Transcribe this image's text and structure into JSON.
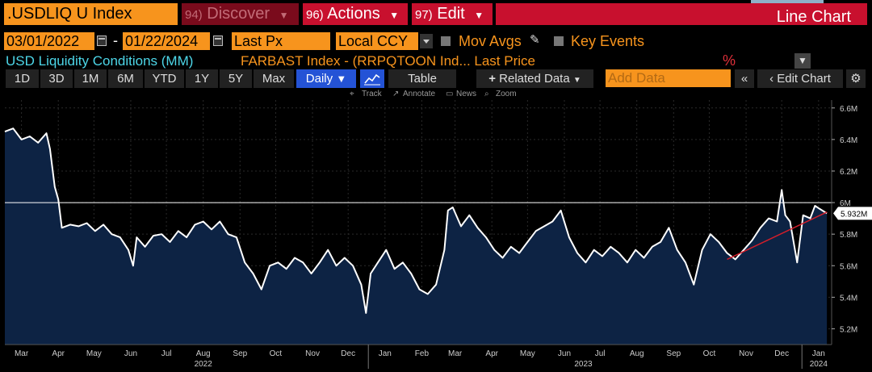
{
  "header": {
    "ticker": ".USDLIQ U Index",
    "menus": [
      {
        "num": "94)",
        "label": "Discover"
      },
      {
        "num": "96)",
        "label": "Actions"
      },
      {
        "num": "97)",
        "label": "Edit"
      }
    ],
    "chart_type_label": "Line Chart"
  },
  "options": {
    "start_date": "03/01/2022",
    "end_date": "01/22/2024",
    "field": "Last Px",
    "currency": "Local CCY",
    "mov_avgs": "Mov Avgs",
    "key_events": "Key Events"
  },
  "legend": {
    "series1": "USD Liquidity Conditions (MM)",
    "series2": "FARBAST Index - (RRPQTOON Ind...  Last Price",
    "pct_icon": "%"
  },
  "toolbar": {
    "periods": [
      "1D",
      "3D",
      "1M",
      "6M",
      "YTD",
      "1Y",
      "5Y",
      "Max"
    ],
    "frequency": "Daily",
    "table": "Table",
    "related": "Related Data",
    "add_data_placeholder": "Add Data",
    "edit_chart": "Edit Chart"
  },
  "hints": {
    "track": "Track",
    "annotate": "Annotate",
    "news": "News",
    "zoom": "Zoom"
  },
  "colors": {
    "orange": "#f7941d",
    "red": "#c8102e",
    "line": "#ffffff",
    "area": "#0d2344",
    "trendline": "#d21e2a",
    "blue_active": "#2453d6",
    "cyan": "#4dd6e8"
  },
  "chart_data": {
    "type": "area",
    "series": [
      {
        "name": "USD Liquidity Conditions (MM)",
        "points": [
          [
            "2022-03-01",
            6.45
          ],
          [
            "2022-03-08",
            6.47
          ],
          [
            "2022-03-15",
            6.4
          ],
          [
            "2022-03-22",
            6.42
          ],
          [
            "2022-03-29",
            6.38
          ],
          [
            "2022-04-05",
            6.44
          ],
          [
            "2022-04-08",
            6.34
          ],
          [
            "2022-04-12",
            6.1
          ],
          [
            "2022-04-15",
            6.02
          ],
          [
            "2022-04-18",
            5.84
          ],
          [
            "2022-04-25",
            5.86
          ],
          [
            "2022-05-02",
            5.85
          ],
          [
            "2022-05-09",
            5.87
          ],
          [
            "2022-05-16",
            5.82
          ],
          [
            "2022-05-23",
            5.86
          ],
          [
            "2022-05-30",
            5.8
          ],
          [
            "2022-06-06",
            5.78
          ],
          [
            "2022-06-13",
            5.7
          ],
          [
            "2022-06-17",
            5.6
          ],
          [
            "2022-06-20",
            5.78
          ],
          [
            "2022-06-27",
            5.72
          ],
          [
            "2022-07-04",
            5.79
          ],
          [
            "2022-07-11",
            5.8
          ],
          [
            "2022-07-18",
            5.75
          ],
          [
            "2022-07-25",
            5.82
          ],
          [
            "2022-08-01",
            5.78
          ],
          [
            "2022-08-08",
            5.86
          ],
          [
            "2022-08-15",
            5.88
          ],
          [
            "2022-08-22",
            5.83
          ],
          [
            "2022-08-29",
            5.88
          ],
          [
            "2022-09-05",
            5.8
          ],
          [
            "2022-09-12",
            5.78
          ],
          [
            "2022-09-19",
            5.62
          ],
          [
            "2022-09-26",
            5.55
          ],
          [
            "2022-10-03",
            5.45
          ],
          [
            "2022-10-10",
            5.6
          ],
          [
            "2022-10-17",
            5.62
          ],
          [
            "2022-10-24",
            5.58
          ],
          [
            "2022-10-31",
            5.65
          ],
          [
            "2022-11-07",
            5.62
          ],
          [
            "2022-11-14",
            5.55
          ],
          [
            "2022-11-21",
            5.62
          ],
          [
            "2022-11-28",
            5.7
          ],
          [
            "2022-12-05",
            5.6
          ],
          [
            "2022-12-12",
            5.65
          ],
          [
            "2022-12-19",
            5.6
          ],
          [
            "2022-12-26",
            5.48
          ],
          [
            "2022-12-30",
            5.3
          ],
          [
            "2023-01-03",
            5.55
          ],
          [
            "2023-01-09",
            5.62
          ],
          [
            "2023-01-16",
            5.7
          ],
          [
            "2023-01-23",
            5.58
          ],
          [
            "2023-01-30",
            5.62
          ],
          [
            "2023-02-06",
            5.55
          ],
          [
            "2023-02-13",
            5.45
          ],
          [
            "2023-02-20",
            5.42
          ],
          [
            "2023-02-27",
            5.48
          ],
          [
            "2023-03-06",
            5.7
          ],
          [
            "2023-03-09",
            5.95
          ],
          [
            "2023-03-13",
            5.97
          ],
          [
            "2023-03-20",
            5.85
          ],
          [
            "2023-03-27",
            5.92
          ],
          [
            "2023-04-03",
            5.84
          ],
          [
            "2023-04-10",
            5.78
          ],
          [
            "2023-04-17",
            5.7
          ],
          [
            "2023-04-24",
            5.65
          ],
          [
            "2023-05-01",
            5.72
          ],
          [
            "2023-05-08",
            5.68
          ],
          [
            "2023-05-15",
            5.75
          ],
          [
            "2023-05-22",
            5.82
          ],
          [
            "2023-05-29",
            5.85
          ],
          [
            "2023-06-05",
            5.88
          ],
          [
            "2023-06-12",
            5.95
          ],
          [
            "2023-06-19",
            5.78
          ],
          [
            "2023-06-26",
            5.68
          ],
          [
            "2023-07-03",
            5.62
          ],
          [
            "2023-07-10",
            5.7
          ],
          [
            "2023-07-17",
            5.66
          ],
          [
            "2023-07-24",
            5.72
          ],
          [
            "2023-07-31",
            5.68
          ],
          [
            "2023-08-07",
            5.62
          ],
          [
            "2023-08-14",
            5.7
          ],
          [
            "2023-08-21",
            5.65
          ],
          [
            "2023-08-28",
            5.72
          ],
          [
            "2023-09-04",
            5.75
          ],
          [
            "2023-09-11",
            5.84
          ],
          [
            "2023-09-18",
            5.7
          ],
          [
            "2023-09-25",
            5.62
          ],
          [
            "2023-10-02",
            5.48
          ],
          [
            "2023-10-09",
            5.7
          ],
          [
            "2023-10-16",
            5.8
          ],
          [
            "2023-10-23",
            5.75
          ],
          [
            "2023-10-30",
            5.68
          ],
          [
            "2023-11-06",
            5.64
          ],
          [
            "2023-11-13",
            5.7
          ],
          [
            "2023-11-20",
            5.76
          ],
          [
            "2023-11-27",
            5.84
          ],
          [
            "2023-12-04",
            5.9
          ],
          [
            "2023-12-11",
            5.88
          ],
          [
            "2023-12-15",
            6.08
          ],
          [
            "2023-12-18",
            5.92
          ],
          [
            "2023-12-22",
            5.88
          ],
          [
            "2023-12-28",
            5.62
          ],
          [
            "2024-01-02",
            5.92
          ],
          [
            "2024-01-08",
            5.9
          ],
          [
            "2024-01-12",
            5.98
          ],
          [
            "2024-01-16",
            5.96
          ],
          [
            "2024-01-22",
            5.932
          ]
        ]
      }
    ],
    "ylim": [
      5.1,
      6.65
    ],
    "yticks": [
      5.2,
      5.4,
      5.6,
      5.8,
      6.0,
      6.2,
      6.4,
      6.6
    ],
    "ytick_labels": [
      "5.2M",
      "5.4M",
      "5.6M",
      "5.8M",
      "6M",
      "6.2M",
      "6.4M",
      "6.6M"
    ],
    "xlim": [
      "2022-03-01",
      "2024-01-26"
    ],
    "x_months": [
      {
        "date": "2022-03-15",
        "label": "Mar"
      },
      {
        "date": "2022-04-15",
        "label": "Apr"
      },
      {
        "date": "2022-05-15",
        "label": "May"
      },
      {
        "date": "2022-06-15",
        "label": "Jun"
      },
      {
        "date": "2022-07-15",
        "label": "Jul"
      },
      {
        "date": "2022-08-15",
        "label": "Aug"
      },
      {
        "date": "2022-09-15",
        "label": "Sep"
      },
      {
        "date": "2022-10-15",
        "label": "Oct"
      },
      {
        "date": "2022-11-15",
        "label": "Nov"
      },
      {
        "date": "2022-12-15",
        "label": "Dec"
      },
      {
        "date": "2023-01-15",
        "label": "Jan"
      },
      {
        "date": "2023-02-15",
        "label": "Feb"
      },
      {
        "date": "2023-03-15",
        "label": "Mar"
      },
      {
        "date": "2023-04-15",
        "label": "Apr"
      },
      {
        "date": "2023-05-15",
        "label": "May"
      },
      {
        "date": "2023-06-15",
        "label": "Jun"
      },
      {
        "date": "2023-07-15",
        "label": "Jul"
      },
      {
        "date": "2023-08-15",
        "label": "Aug"
      },
      {
        "date": "2023-09-15",
        "label": "Sep"
      },
      {
        "date": "2023-10-15",
        "label": "Oct"
      },
      {
        "date": "2023-11-15",
        "label": "Nov"
      },
      {
        "date": "2023-12-15",
        "label": "Dec"
      },
      {
        "date": "2024-01-15",
        "label": "Jan"
      }
    ],
    "x_years": [
      {
        "date": "2022-08-15",
        "label": "2022"
      },
      {
        "date": "2023-07-01",
        "label": "2023"
      },
      {
        "date": "2024-01-15",
        "label": "2024"
      }
    ],
    "year_boundaries": [
      "2023-01-01",
      "2024-01-01"
    ],
    "reference_line": 6.0,
    "last_value_label": "5.932M",
    "trendline": {
      "start": [
        "2023-10-30",
        5.64
      ],
      "end": [
        "2024-01-22",
        5.94
      ]
    }
  }
}
